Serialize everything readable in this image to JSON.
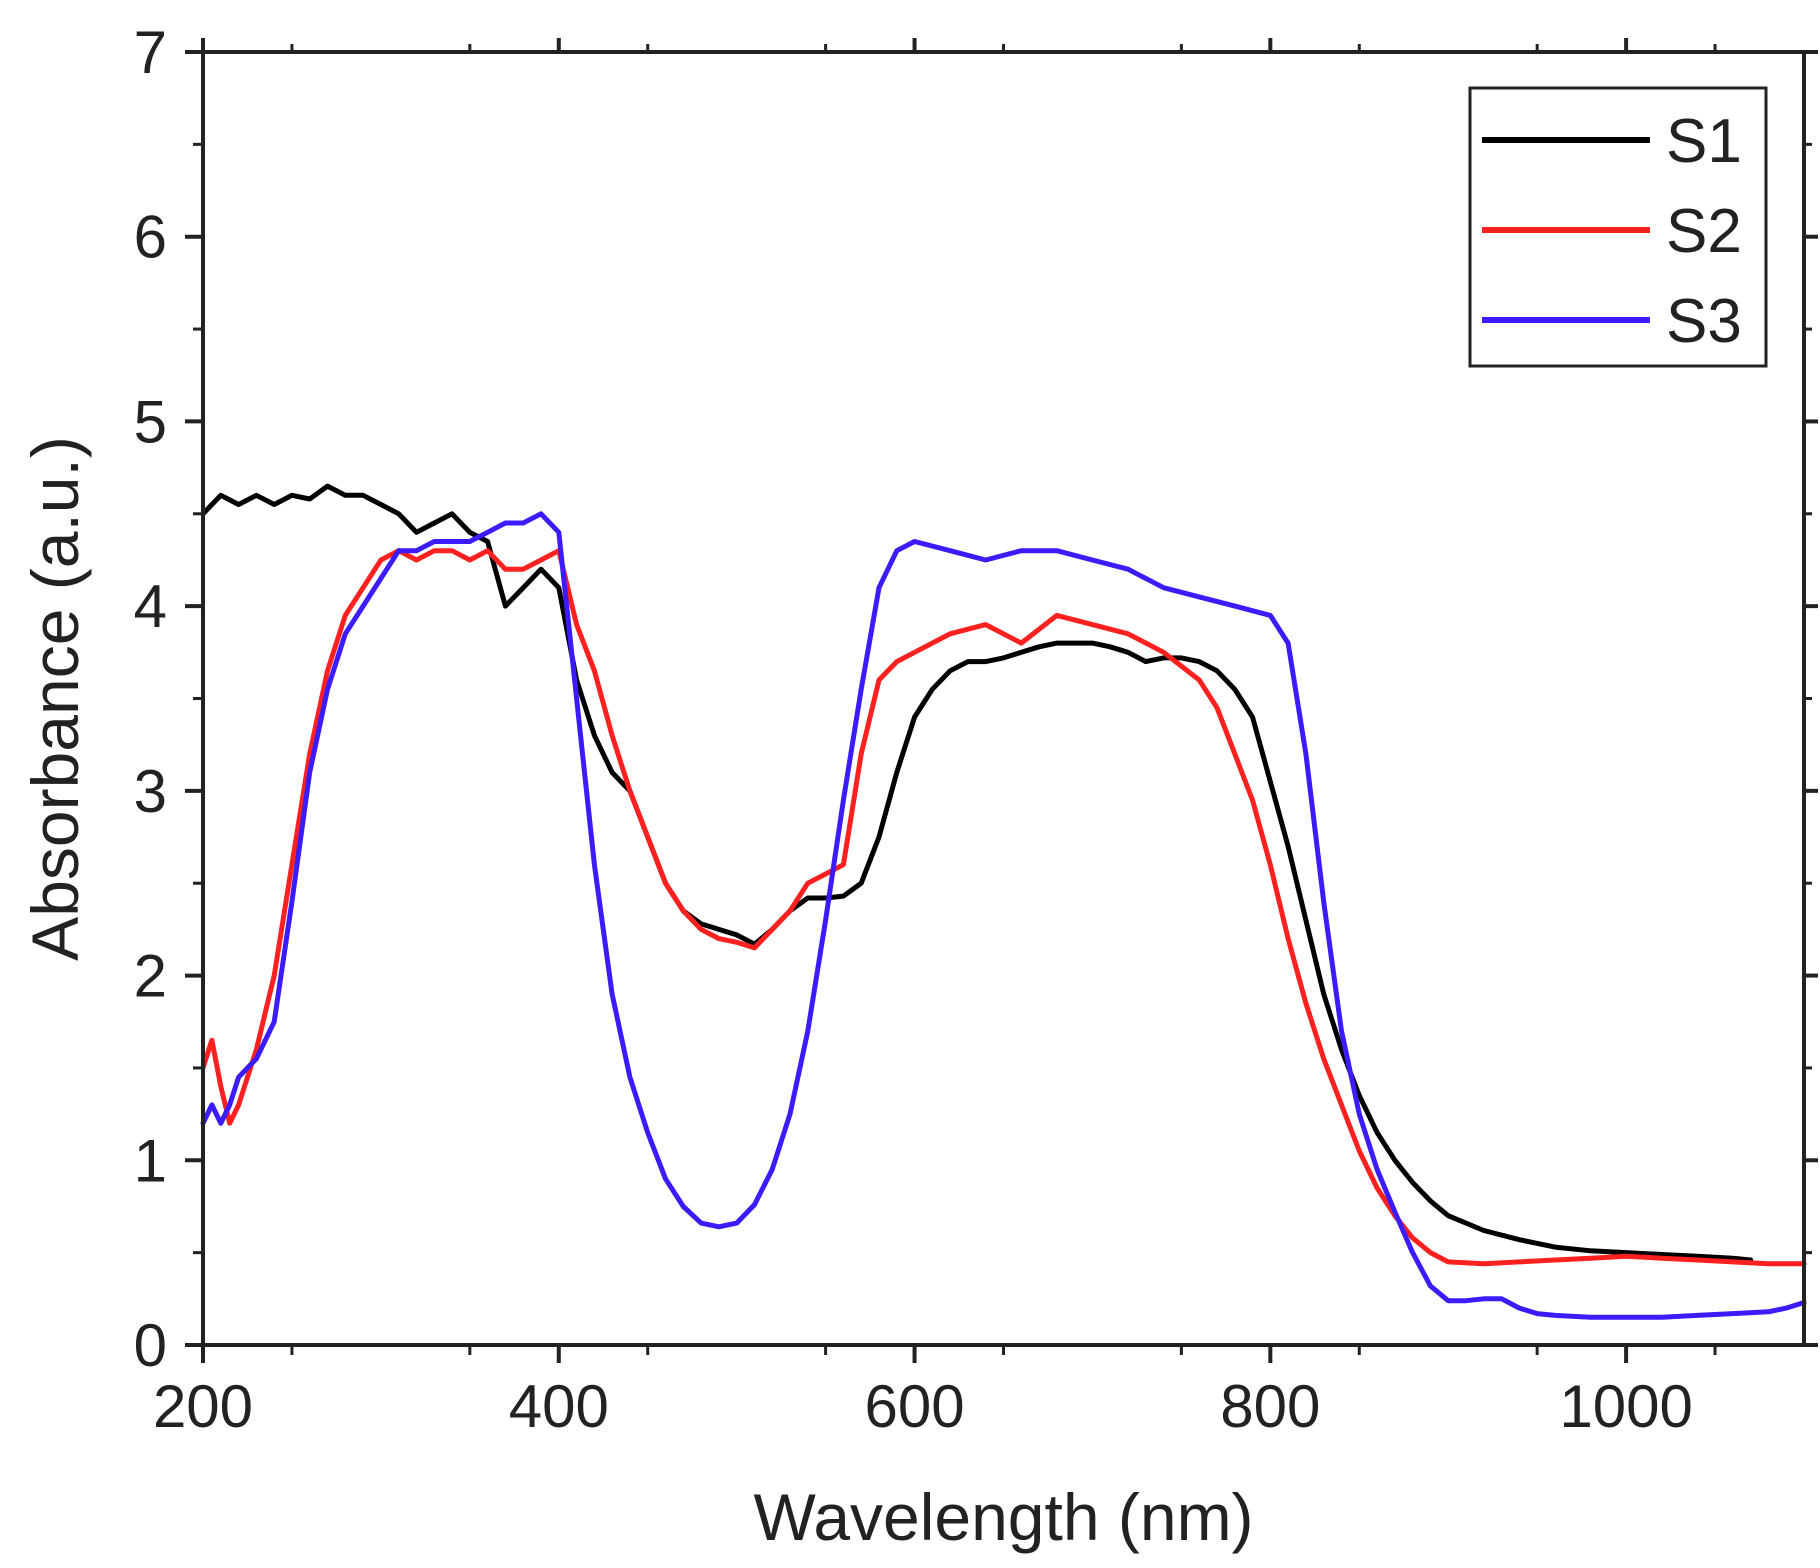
{
  "chart_data": {
    "type": "line",
    "title": "",
    "xlabel": "Wavelength (nm)",
    "ylabel": "Absorbance (a.u.)",
    "xlim": [
      200,
      1100
    ],
    "ylim": [
      0,
      7
    ],
    "x_ticks": [
      200,
      400,
      600,
      800,
      1000
    ],
    "x_tick_labels": [
      "200",
      "400",
      "600",
      "800",
      "1000"
    ],
    "y_ticks": [
      0,
      1,
      2,
      3,
      4,
      5,
      6,
      7
    ],
    "y_tick_labels": [
      "0",
      "1",
      "2",
      "3",
      "4",
      "5",
      "6",
      "7"
    ],
    "grid": false,
    "legend_position": "top-right",
    "series": [
      {
        "name": "S1",
        "color": "#000000",
        "x": [
          200,
          210,
          220,
          230,
          240,
          250,
          260,
          270,
          280,
          290,
          300,
          310,
          320,
          330,
          340,
          350,
          360,
          370,
          380,
          390,
          400,
          410,
          420,
          430,
          440,
          450,
          460,
          470,
          480,
          490,
          500,
          510,
          520,
          530,
          540,
          550,
          560,
          570,
          580,
          590,
          600,
          610,
          620,
          630,
          640,
          650,
          660,
          670,
          680,
          690,
          700,
          710,
          720,
          730,
          740,
          750,
          760,
          770,
          780,
          790,
          800,
          810,
          820,
          830,
          840,
          850,
          860,
          870,
          880,
          890,
          900,
          920,
          940,
          960,
          980,
          1000,
          1020,
          1040,
          1060,
          1070
        ],
        "y": [
          4.5,
          4.6,
          4.55,
          4.6,
          4.55,
          4.6,
          4.58,
          4.65,
          4.6,
          4.6,
          4.55,
          4.5,
          4.4,
          4.45,
          4.5,
          4.4,
          4.35,
          4.0,
          4.1,
          4.2,
          4.1,
          3.6,
          3.3,
          3.1,
          3.0,
          2.75,
          2.5,
          2.35,
          2.28,
          2.25,
          2.22,
          2.17,
          2.25,
          2.35,
          2.42,
          2.42,
          2.43,
          2.5,
          2.75,
          3.1,
          3.4,
          3.55,
          3.65,
          3.7,
          3.7,
          3.72,
          3.75,
          3.78,
          3.8,
          3.8,
          3.8,
          3.78,
          3.75,
          3.7,
          3.72,
          3.72,
          3.7,
          3.65,
          3.55,
          3.4,
          3.05,
          2.7,
          2.3,
          1.9,
          1.6,
          1.35,
          1.15,
          1.0,
          0.88,
          0.78,
          0.7,
          0.62,
          0.57,
          0.53,
          0.51,
          0.5,
          0.49,
          0.48,
          0.47,
          0.46
        ]
      },
      {
        "name": "S2",
        "color": "#ff2020",
        "x": [
          200,
          205,
          210,
          215,
          220,
          225,
          230,
          240,
          250,
          260,
          270,
          280,
          290,
          300,
          310,
          320,
          330,
          340,
          350,
          360,
          370,
          380,
          390,
          400,
          410,
          420,
          430,
          440,
          450,
          460,
          470,
          480,
          490,
          500,
          510,
          520,
          530,
          540,
          550,
          560,
          570,
          580,
          590,
          600,
          620,
          640,
          660,
          680,
          700,
          720,
          740,
          760,
          770,
          780,
          790,
          800,
          810,
          820,
          830,
          840,
          850,
          860,
          870,
          880,
          890,
          900,
          920,
          940,
          960,
          980,
          1000,
          1020,
          1040,
          1060,
          1080,
          1100
        ],
        "y": [
          1.5,
          1.65,
          1.4,
          1.2,
          1.3,
          1.45,
          1.6,
          2.0,
          2.6,
          3.2,
          3.65,
          3.95,
          4.1,
          4.25,
          4.3,
          4.25,
          4.3,
          4.3,
          4.25,
          4.3,
          4.2,
          4.2,
          4.25,
          4.3,
          3.9,
          3.65,
          3.3,
          3.0,
          2.75,
          2.5,
          2.35,
          2.25,
          2.2,
          2.18,
          2.15,
          2.25,
          2.35,
          2.5,
          2.55,
          2.6,
          3.2,
          3.6,
          3.7,
          3.75,
          3.85,
          3.9,
          3.8,
          3.95,
          3.9,
          3.85,
          3.75,
          3.6,
          3.45,
          3.2,
          2.95,
          2.6,
          2.2,
          1.85,
          1.55,
          1.3,
          1.05,
          0.85,
          0.7,
          0.58,
          0.5,
          0.45,
          0.44,
          0.45,
          0.46,
          0.47,
          0.48,
          0.47,
          0.46,
          0.45,
          0.44,
          0.44
        ]
      },
      {
        "name": "S3",
        "color": "#3a1cff",
        "x": [
          200,
          205,
          210,
          215,
          220,
          225,
          230,
          240,
          250,
          260,
          270,
          280,
          290,
          300,
          310,
          320,
          330,
          340,
          350,
          360,
          370,
          380,
          390,
          400,
          410,
          420,
          430,
          440,
          450,
          460,
          470,
          480,
          490,
          500,
          510,
          520,
          530,
          540,
          550,
          560,
          570,
          580,
          590,
          600,
          620,
          640,
          660,
          680,
          700,
          720,
          740,
          760,
          780,
          800,
          810,
          820,
          830,
          840,
          850,
          860,
          870,
          880,
          890,
          900,
          910,
          920,
          930,
          940,
          950,
          960,
          980,
          1000,
          1020,
          1040,
          1060,
          1080,
          1090,
          1100
        ],
        "y": [
          1.2,
          1.3,
          1.2,
          1.3,
          1.45,
          1.5,
          1.55,
          1.75,
          2.4,
          3.1,
          3.55,
          3.85,
          4.0,
          4.15,
          4.3,
          4.3,
          4.35,
          4.35,
          4.35,
          4.4,
          4.45,
          4.45,
          4.5,
          4.4,
          3.5,
          2.6,
          1.9,
          1.45,
          1.15,
          0.9,
          0.75,
          0.66,
          0.64,
          0.66,
          0.76,
          0.95,
          1.25,
          1.7,
          2.3,
          2.95,
          3.55,
          4.1,
          4.3,
          4.35,
          4.3,
          4.25,
          4.3,
          4.3,
          4.25,
          4.2,
          4.1,
          4.05,
          4.0,
          3.95,
          3.8,
          3.2,
          2.4,
          1.7,
          1.25,
          0.95,
          0.72,
          0.5,
          0.32,
          0.24,
          0.24,
          0.25,
          0.25,
          0.2,
          0.17,
          0.16,
          0.15,
          0.15,
          0.15,
          0.16,
          0.17,
          0.18,
          0.2,
          0.23
        ]
      }
    ]
  }
}
